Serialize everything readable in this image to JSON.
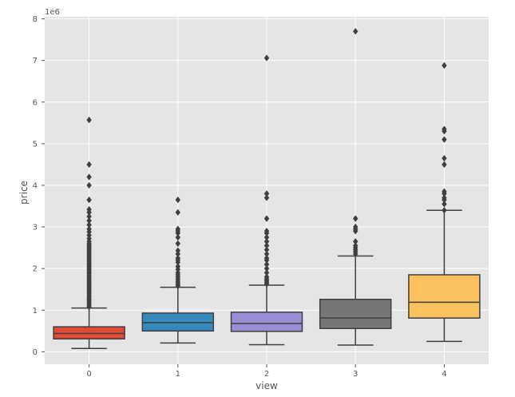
{
  "chart_data": {
    "type": "box",
    "xlabel": "view",
    "ylabel": "price",
    "y_offset_label": "1e6",
    "y_scale": 1000000,
    "ylim": [
      -300000,
      8050000
    ],
    "yticks": [
      0,
      1000000,
      2000000,
      3000000,
      4000000,
      5000000,
      6000000,
      7000000,
      8000000
    ],
    "ytick_labels": [
      "0",
      "1",
      "2",
      "3",
      "4",
      "5",
      "6",
      "7",
      "8"
    ],
    "grid": true,
    "categories": [
      "0",
      "1",
      "2",
      "3",
      "4"
    ],
    "colors": [
      "#e24a33",
      "#348abd",
      "#988ed5",
      "#777777",
      "#fbc15e"
    ],
    "boxes": [
      {
        "category": "0",
        "whisker_low": 80000,
        "q1": 310000,
        "median": 440000,
        "q3": 600000,
        "whisker_high": 1050000,
        "outliers": [
          1080000,
          1120000,
          1160000,
          1200000,
          1240000,
          1280000,
          1320000,
          1360000,
          1400000,
          1440000,
          1480000,
          1520000,
          1560000,
          1600000,
          1640000,
          1680000,
          1720000,
          1760000,
          1800000,
          1840000,
          1880000,
          1920000,
          1960000,
          2000000,
          2040000,
          2080000,
          2120000,
          2160000,
          2200000,
          2240000,
          2280000,
          2320000,
          2360000,
          2400000,
          2440000,
          2480000,
          2520000,
          2560000,
          2600000,
          2650000,
          2720000,
          2800000,
          2880000,
          2950000,
          3050000,
          3150000,
          3250000,
          3350000,
          3420000,
          3650000,
          4000000,
          4200000,
          4500000,
          5570000
        ]
      },
      {
        "category": "1",
        "whisker_low": 210000,
        "q1": 500000,
        "median": 700000,
        "q3": 930000,
        "whisker_high": 1550000,
        "outliers": [
          1580000,
          1620000,
          1660000,
          1700000,
          1750000,
          1800000,
          1850000,
          1900000,
          1980000,
          2050000,
          2150000,
          2200000,
          2250000,
          2350000,
          2430000,
          2600000,
          2750000,
          2850000,
          2900000,
          2950000,
          3350000,
          3650000
        ]
      },
      {
        "category": "2",
        "whisker_low": 170000,
        "q1": 490000,
        "median": 680000,
        "q3": 950000,
        "whisker_high": 1600000,
        "outliers": [
          1630000,
          1670000,
          1710000,
          1750000,
          1800000,
          1900000,
          2000000,
          2100000,
          2200000,
          2250000,
          2350000,
          2450000,
          2550000,
          2650000,
          2750000,
          2850000,
          2900000,
          3200000,
          3700000,
          3800000,
          7060000
        ]
      },
      {
        "category": "3",
        "whisker_low": 160000,
        "q1": 560000,
        "median": 810000,
        "q3": 1260000,
        "whisker_high": 2300000,
        "outliers": [
          2350000,
          2400000,
          2450000,
          2500000,
          2550000,
          2650000,
          2900000,
          2950000,
          3000000,
          3200000,
          7700000
        ]
      },
      {
        "category": "4",
        "whisker_low": 250000,
        "q1": 810000,
        "median": 1190000,
        "q3": 1850000,
        "whisker_high": 3400000,
        "outliers": [
          3400000,
          3550000,
          3650000,
          3700000,
          3800000,
          3850000,
          4500000,
          4650000,
          5100000,
          5300000,
          5350000,
          6880000
        ]
      }
    ]
  }
}
